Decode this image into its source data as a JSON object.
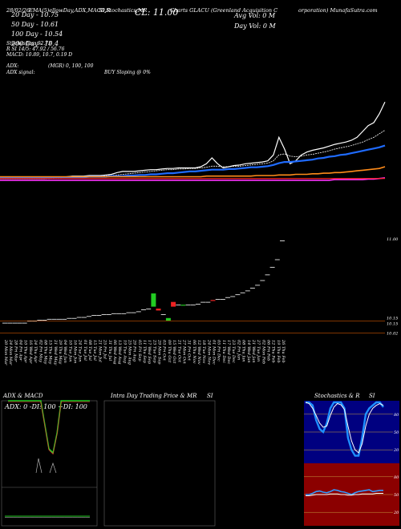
{
  "header": {
    "date": "28/02/26",
    "line1_left": "EMA(5)ellowDay,ADX,MACD,R",
    "line1_mid": "SI,Stochastics,MR",
    "line1_cl": "CL: 11.00",
    "line1_chart": "Charts GLACU",
    "line1_company": "(Greenland Acquisition C",
    "line1_company2": "orporation) MunafaSutra.com",
    "ma20": "20 Day - 10.75",
    "ma50": "50 Day - 10.61",
    "ma100": "100 Day - 10.54",
    "ma200": "200 Day - 10.4",
    "avg_vol": "Avg Vol: 0   M",
    "day_vol": "Day Vol: 0   M",
    "stochastics": "Stochastics: 92.73",
    "rsi": "R        SI 14/5: 47.92 / 56.76",
    "macd": "MACD: 10.89,  10.7,  0.19 D",
    "adx_label": "ADX:",
    "adx_values": "(MGR) 0,  100,  100",
    "adx_signal_label": "ADX  signal:",
    "adx_signal": "BUY Sloping @ 0%"
  },
  "colors": {
    "ema5": "#ffffff",
    "ema20": "#ffffff",
    "ema50": "#1f6bff",
    "ema100": "#ff8c1a",
    "ema200": "#ff33ff",
    "bull": "#22cc22",
    "bear": "#ee2222",
    "neutral": "#ffffff",
    "price_line": "#cc5500",
    "stoch_bg": "#000080",
    "rsi_bg": "#8b0000",
    "macd_line": "#22cc22"
  },
  "chart_data": [
    {
      "type": "line",
      "name": "price-and-moving-averages",
      "x": [
        0,
        1,
        2,
        3,
        4,
        5,
        6,
        7,
        8,
        9,
        10,
        11,
        12,
        13,
        14,
        15,
        16,
        17,
        18,
        19,
        20,
        21,
        22,
        23,
        24,
        25,
        26,
        27,
        28,
        29,
        30,
        31,
        32,
        33,
        34,
        35,
        36,
        37,
        38,
        39,
        40,
        41,
        42,
        43,
        44,
        45,
        46,
        47,
        48,
        49,
        50,
        51,
        52,
        53,
        54,
        55,
        56,
        57,
        58,
        59,
        60,
        61,
        62,
        63,
        64,
        65,
        66,
        67,
        68,
        69
      ],
      "series": [
        {
          "name": "",
          "color_key": "ema5",
          "values": [
            10.1,
            10.1,
            10.1,
            10.1,
            10.1,
            10.1,
            10.1,
            10.1,
            10.1,
            10.11,
            10.12,
            10.12,
            10.13,
            10.14,
            10.14,
            10.14,
            10.15,
            10.15,
            10.15,
            10.16,
            10.17,
            10.2,
            10.22,
            10.22,
            10.22,
            10.23,
            10.24,
            10.25,
            10.25,
            10.26,
            10.27,
            10.27,
            10.28,
            10.28,
            10.28,
            10.28,
            10.3,
            10.35,
            10.45,
            10.35,
            10.28,
            10.3,
            10.32,
            10.33,
            10.35,
            10.36,
            10.37,
            10.38,
            10.4,
            10.5,
            10.8,
            10.6,
            10.35,
            10.4,
            10.5,
            10.55,
            10.58,
            10.6,
            10.62,
            10.65,
            10.68,
            10.7,
            10.72,
            10.75,
            10.8,
            10.9,
            11.0,
            11.05,
            11.2,
            11.4
          ]
        },
        {
          "name": "",
          "color_key": "ema20",
          "values": [
            10.1,
            10.1,
            10.1,
            10.1,
            10.1,
            10.1,
            10.1,
            10.1,
            10.1,
            10.1,
            10.11,
            10.11,
            10.12,
            10.12,
            10.13,
            10.13,
            10.14,
            10.14,
            10.14,
            10.15,
            10.15,
            10.16,
            10.17,
            10.18,
            10.19,
            10.2,
            10.21,
            10.22,
            10.23,
            10.24,
            10.25,
            10.25,
            10.26,
            10.26,
            10.27,
            10.27,
            10.28,
            10.29,
            10.31,
            10.31,
            10.3,
            10.3,
            10.31,
            10.31,
            10.32,
            10.33,
            10.34,
            10.35,
            10.36,
            10.4,
            10.5,
            10.52,
            10.48,
            10.47,
            10.48,
            10.5,
            10.51,
            10.53,
            10.55,
            10.57,
            10.6,
            10.62,
            10.64,
            10.66,
            10.69,
            10.72,
            10.76,
            10.8,
            10.86,
            10.92
          ]
        },
        {
          "name": "",
          "color_key": "ema50",
          "values": [
            10.12,
            10.12,
            10.12,
            10.12,
            10.12,
            10.12,
            10.12,
            10.12,
            10.12,
            10.12,
            10.12,
            10.12,
            10.12,
            10.12,
            10.12,
            10.12,
            10.13,
            10.13,
            10.13,
            10.13,
            10.14,
            10.14,
            10.14,
            10.15,
            10.15,
            10.16,
            10.16,
            10.17,
            10.17,
            10.18,
            10.19,
            10.19,
            10.2,
            10.21,
            10.22,
            10.22,
            10.23,
            10.24,
            10.25,
            10.25,
            10.25,
            10.26,
            10.26,
            10.27,
            10.28,
            10.29,
            10.29,
            10.3,
            10.31,
            10.33,
            10.36,
            10.38,
            10.38,
            10.39,
            10.4,
            10.41,
            10.42,
            10.44,
            10.45,
            10.47,
            10.48,
            10.5,
            10.51,
            10.53,
            10.55,
            10.57,
            10.59,
            10.61,
            10.63,
            10.66
          ]
        },
        {
          "name": "",
          "color_key": "ema100",
          "values": [
            10.13,
            10.13,
            10.13,
            10.13,
            10.13,
            10.13,
            10.13,
            10.13,
            10.13,
            10.13,
            10.13,
            10.13,
            10.13,
            10.13,
            10.13,
            10.13,
            10.13,
            10.13,
            10.13,
            10.13,
            10.13,
            10.13,
            10.13,
            10.13,
            10.13,
            10.13,
            10.13,
            10.13,
            10.13,
            10.13,
            10.13,
            10.13,
            10.13,
            10.13,
            10.13,
            10.13,
            10.13,
            10.14,
            10.14,
            10.14,
            10.14,
            10.14,
            10.14,
            10.14,
            10.14,
            10.14,
            10.15,
            10.15,
            10.15,
            10.15,
            10.16,
            10.16,
            10.16,
            10.17,
            10.17,
            10.17,
            10.18,
            10.18,
            10.19,
            10.19,
            10.2,
            10.2,
            10.21,
            10.22,
            10.23,
            10.24,
            10.25,
            10.26,
            10.27,
            10.3
          ]
        },
        {
          "name": "",
          "color_key": "ema200",
          "values": [
            10.07,
            10.07,
            10.07,
            10.07,
            10.07,
            10.07,
            10.07,
            10.07,
            10.07,
            10.07,
            10.07,
            10.07,
            10.07,
            10.07,
            10.07,
            10.07,
            10.07,
            10.07,
            10.07,
            10.07,
            10.07,
            10.07,
            10.07,
            10.07,
            10.07,
            10.07,
            10.07,
            10.07,
            10.07,
            10.07,
            10.07,
            10.07,
            10.07,
            10.07,
            10.07,
            10.07,
            10.07,
            10.07,
            10.07,
            10.07,
            10.07,
            10.07,
            10.07,
            10.07,
            10.07,
            10.07,
            10.07,
            10.07,
            10.07,
            10.07,
            10.07,
            10.07,
            10.07,
            10.07,
            10.07,
            10.07,
            10.07,
            10.07,
            10.07,
            10.07,
            10.08,
            10.08,
            10.08,
            10.08,
            10.08,
            10.08,
            10.09,
            10.09,
            10.1,
            10.11
          ]
        }
      ]
    },
    {
      "type": "bar",
      "name": "daily-candles",
      "price_labels": [
        "11.00",
        "10.15",
        "10.15",
        "10.02"
      ],
      "dates": [
        "20 Mon Mar",
        "24 Mon Mar",
        "28 Fri Mar",
        "04 Fri Apr",
        "10 Thu Apr",
        "16 Wed Apr",
        "24 Thu Apr",
        "02 Fri May",
        "08 Thu May",
        "15 Thu May",
        "21 Wed May",
        "29 Thu May",
        "04 Wed Jun",
        "10 Tue Jun",
        "16 Mon Jun",
        "24 Tue Jun",
        "01 Tue Jul",
        "08 Tue Jul",
        "15 Tue Jul",
        "21 Mon Jul",
        "25 Fri Jul",
        "31 Thu Jul",
        "06 Wed Aug",
        "13 Wed Aug",
        "19 Tue Aug",
        "25 Mon Aug",
        "29 Fri Aug",
        "05 Fri Sep",
        "11 Thu Sep",
        "17 Wed Sep",
        "23 Tue Sep",
        "29 Mon Sep",
        "03 Fri Oct",
        "09 Thu Oct",
        "15 Wed Oct",
        "21 Tue Oct",
        "27 Mon Oct",
        "31 Fri Oct",
        "06 Thu Nov",
        "12 Wed Nov",
        "18 Tue Nov",
        "24 Mon Nov",
        "01 Mon Dec",
        "05 Fri Dec",
        "11 Thu Dec",
        "17 Wed Dec",
        "23 Tue Dec",
        "02 Fri Jan",
        "08 Thu Jan",
        "14 Wed Jan",
        "21 Wed Jan",
        "27 Tue Jan",
        "02 Mon Feb",
        "06 Fri Feb",
        "12 Thu Feb",
        "19 Thu Feb",
        "26 Thu Feb"
      ],
      "candles": [
        {
          "o": 10.13,
          "c": 10.13,
          "k": "n"
        },
        {
          "o": 10.13,
          "c": 10.13,
          "k": "n"
        },
        {
          "o": 10.13,
          "c": 10.13,
          "k": "n"
        },
        {
          "o": 10.13,
          "c": 10.13,
          "k": "n"
        },
        {
          "o": 10.13,
          "c": 10.13,
          "k": "n"
        },
        {
          "o": 10.15,
          "c": 10.15,
          "k": "n"
        },
        {
          "o": 10.15,
          "c": 10.15,
          "k": "n"
        },
        {
          "o": 10.16,
          "c": 10.16,
          "k": "n"
        },
        {
          "o": 10.16,
          "c": 10.16,
          "k": "n"
        },
        {
          "o": 10.17,
          "c": 10.17,
          "k": "n"
        },
        {
          "o": 10.17,
          "c": 10.17,
          "k": "n"
        },
        {
          "o": 10.17,
          "c": 10.17,
          "k": "n"
        },
        {
          "o": 10.17,
          "c": 10.17,
          "k": "n"
        },
        {
          "o": 10.18,
          "c": 10.18,
          "k": "n"
        },
        {
          "o": 10.18,
          "c": 10.18,
          "k": "n"
        },
        {
          "o": 10.19,
          "c": 10.19,
          "k": "n"
        },
        {
          "o": 10.19,
          "c": 10.19,
          "k": "n"
        },
        {
          "o": 10.2,
          "c": 10.2,
          "k": "n"
        },
        {
          "o": 10.21,
          "c": 10.21,
          "k": "n"
        },
        {
          "o": 10.21,
          "c": 10.21,
          "k": "n"
        },
        {
          "o": 10.22,
          "c": 10.22,
          "k": "n"
        },
        {
          "o": 10.22,
          "c": 10.22,
          "k": "n"
        },
        {
          "o": 10.23,
          "c": 10.23,
          "k": "n"
        },
        {
          "o": 10.23,
          "c": 10.23,
          "k": "n"
        },
        {
          "o": 10.23,
          "c": 10.23,
          "k": "n"
        },
        {
          "o": 10.24,
          "c": 10.24,
          "k": "n"
        },
        {
          "o": 10.24,
          "c": 10.24,
          "k": "n"
        },
        {
          "o": 10.25,
          "c": 10.25,
          "k": "n"
        },
        {
          "o": 10.27,
          "c": 10.27,
          "k": "n"
        },
        {
          "o": 10.28,
          "c": 10.28,
          "k": "n"
        },
        {
          "o": 10.3,
          "c": 10.44,
          "k": "g"
        },
        {
          "o": 10.26,
          "c": 10.28,
          "k": "r"
        },
        {
          "o": 10.22,
          "c": 10.22,
          "k": "n"
        },
        {
          "o": 10.15,
          "c": 10.18,
          "k": "g"
        },
        {
          "o": 10.3,
          "c": 10.35,
          "k": "r"
        },
        {
          "o": 10.32,
          "c": 10.32,
          "k": "n"
        },
        {
          "o": 10.31,
          "c": 10.32,
          "k": "g"
        },
        {
          "o": 10.32,
          "c": 10.32,
          "k": "n"
        },
        {
          "o": 10.32,
          "c": 10.32,
          "k": "n"
        },
        {
          "o": 10.33,
          "c": 10.33,
          "k": "n"
        },
        {
          "o": 10.35,
          "c": 10.35,
          "k": "n"
        },
        {
          "o": 10.35,
          "c": 10.35,
          "k": "n"
        },
        {
          "o": 10.36,
          "c": 10.37,
          "k": "r"
        },
        {
          "o": 10.38,
          "c": 10.38,
          "k": "n"
        },
        {
          "o": 10.38,
          "c": 10.38,
          "k": "n"
        },
        {
          "o": 10.4,
          "c": 10.4,
          "k": "n"
        },
        {
          "o": 10.41,
          "c": 10.41,
          "k": "n"
        },
        {
          "o": 10.43,
          "c": 10.43,
          "k": "n"
        },
        {
          "o": 10.45,
          "c": 10.45,
          "k": "n"
        },
        {
          "o": 10.47,
          "c": 10.47,
          "k": "n"
        },
        {
          "o": 10.5,
          "c": 10.5,
          "k": "n"
        },
        {
          "o": 10.53,
          "c": 10.53,
          "k": "n"
        },
        {
          "o": 10.58,
          "c": 10.58,
          "k": "n"
        },
        {
          "o": 10.64,
          "c": 10.64,
          "k": "n"
        },
        {
          "o": 10.72,
          "c": 10.72,
          "k": "n"
        },
        {
          "o": 10.8,
          "c": 10.8,
          "k": "n"
        },
        {
          "o": 11.0,
          "c": 11.0,
          "k": "n"
        }
      ]
    },
    {
      "type": "line",
      "name": "adx-macd",
      "title": "ADX  & MACD",
      "adx_text": "ADX: 0   -DI: 100   +DI: 100",
      "adx_line": [
        100,
        100,
        100,
        100,
        100,
        100,
        100,
        100,
        100,
        70,
        40,
        35,
        60,
        100,
        100,
        100,
        100,
        100,
        100,
        100,
        100
      ],
      "macd_hist": [
        0,
        0,
        0,
        0,
        0,
        0,
        0,
        0,
        0,
        0,
        0,
        0,
        0,
        0,
        0,
        0,
        0,
        0,
        0,
        0,
        0
      ]
    },
    {
      "type": "bar",
      "name": "intraday-mrsi",
      "title": "Intra  Day Trading Price  & MR",
      "title_suffix": "SI"
    },
    {
      "type": "line",
      "name": "stochastics-rsi",
      "title": "Stochastics & R",
      "title_suffix": "SI",
      "stoch_ticks": [
        "80",
        "50",
        "20"
      ],
      "rsi_ticks": [
        "80",
        "50",
        "20"
      ],
      "stoch_k": [
        100,
        100,
        95,
        70,
        55,
        50,
        65,
        90,
        100,
        100,
        100,
        90,
        40,
        20,
        10,
        10,
        40,
        80,
        90,
        95,
        100,
        100,
        92
      ],
      "stoch_d": [
        100,
        98,
        90,
        78,
        65,
        58,
        60,
        78,
        92,
        98,
        96,
        88,
        60,
        35,
        20,
        15,
        30,
        60,
        80,
        90,
        95,
        98,
        95
      ],
      "rsi": [
        50,
        50,
        52,
        55,
        56,
        54,
        53,
        55,
        58,
        57,
        55,
        54,
        52,
        50,
        53,
        55,
        56,
        57,
        58,
        55,
        56,
        57,
        57
      ],
      "rsi_white": [
        48,
        48,
        49,
        50,
        50,
        50,
        50,
        51,
        51,
        51,
        50,
        50,
        49,
        49,
        50,
        50,
        51,
        51,
        51,
        51,
        52,
        52,
        52
      ]
    }
  ]
}
